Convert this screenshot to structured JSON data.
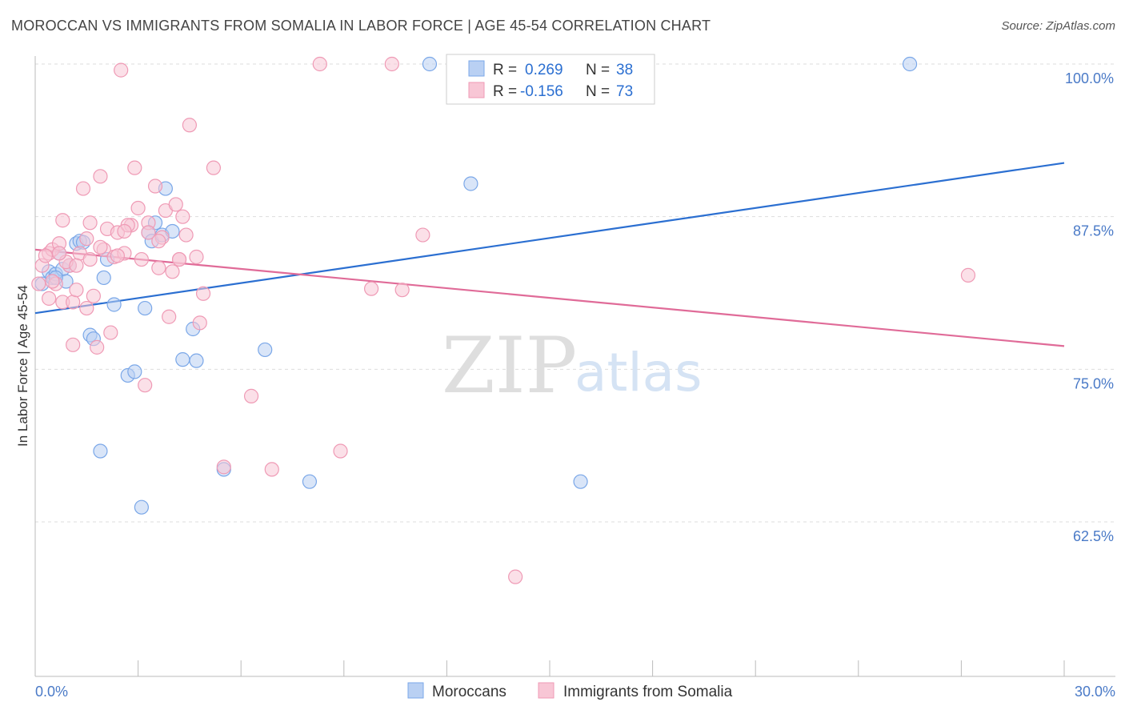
{
  "chart_data": {
    "type": "scatter",
    "title": "MOROCCAN VS IMMIGRANTS FROM SOMALIA IN LABOR FORCE | AGE 45-54 CORRELATION CHART",
    "source": "Source: ZipAtlas.com",
    "xlabel": "",
    "ylabel": "In Labor Force | Age 45-54",
    "xlim": [
      0,
      30
    ],
    "ylim": [
      51.5,
      102
    ],
    "x_tick_labels": [
      "0.0%",
      "30.0%"
    ],
    "y_ticks": [
      62.5,
      75.0,
      87.5,
      100.0
    ],
    "y_tick_labels": [
      "62.5%",
      "75.0%",
      "87.5%",
      "100.0%"
    ],
    "watermark": {
      "zip": "ZIP",
      "atlas": "atlas"
    },
    "legend": {
      "rows": [
        {
          "r_label": "R =",
          "r_value": "0.269",
          "n_label": "N =",
          "n_value": "38"
        },
        {
          "r_label": "R =",
          "r_value": "-0.156",
          "n_label": "N =",
          "n_value": "73"
        }
      ]
    },
    "series": [
      {
        "name": "Moroccans",
        "color": "#7aa7e8",
        "fill": "#b9d0f3",
        "line_color": "#2b6fd1",
        "trend": {
          "x": [
            0,
            30
          ],
          "y": [
            79.6,
            91.9
          ]
        },
        "points": [
          [
            0.2,
            82.0
          ],
          [
            0.4,
            83.0
          ],
          [
            0.5,
            82.5
          ],
          [
            0.6,
            82.8
          ],
          [
            0.7,
            84.5
          ],
          [
            0.8,
            83.2
          ],
          [
            0.9,
            82.2
          ],
          [
            1.0,
            83.5
          ],
          [
            1.2,
            85.3
          ],
          [
            1.3,
            85.5
          ],
          [
            1.6,
            77.8
          ],
          [
            1.7,
            77.5
          ],
          [
            2.0,
            82.5
          ],
          [
            2.1,
            84.0
          ],
          [
            2.3,
            80.3
          ],
          [
            2.7,
            74.5
          ],
          [
            2.9,
            74.8
          ],
          [
            3.2,
            80.0
          ],
          [
            3.3,
            86.2
          ],
          [
            3.4,
            85.5
          ],
          [
            3.5,
            87.0
          ],
          [
            3.7,
            86.0
          ],
          [
            3.8,
            89.8
          ],
          [
            4.0,
            86.3
          ],
          [
            4.3,
            75.8
          ],
          [
            4.6,
            78.3
          ],
          [
            4.7,
            75.7
          ],
          [
            5.5,
            66.8
          ],
          [
            6.7,
            76.6
          ],
          [
            8.0,
            65.8
          ],
          [
            11.5,
            100.0
          ],
          [
            12.7,
            90.2
          ],
          [
            1.9,
            68.3
          ],
          [
            3.1,
            63.7
          ],
          [
            15.9,
            65.8
          ],
          [
            25.5,
            100.0
          ],
          [
            0.6,
            82.5
          ],
          [
            1.4,
            85.4
          ]
        ]
      },
      {
        "name": "Immigrants from Somalia",
        "color": "#ef9ab5",
        "fill": "#f8c6d5",
        "line_color": "#e06b98",
        "trend": {
          "x": [
            0,
            30
          ],
          "y": [
            84.8,
            76.9
          ]
        },
        "points": [
          [
            0.1,
            82.0
          ],
          [
            0.2,
            83.5
          ],
          [
            0.4,
            84.5
          ],
          [
            0.5,
            84.8
          ],
          [
            0.6,
            82.0
          ],
          [
            0.7,
            85.3
          ],
          [
            0.8,
            80.5
          ],
          [
            0.8,
            87.2
          ],
          [
            1.0,
            83.5
          ],
          [
            1.1,
            80.5
          ],
          [
            1.1,
            77.0
          ],
          [
            1.2,
            81.5
          ],
          [
            1.3,
            84.5
          ],
          [
            1.4,
            89.8
          ],
          [
            1.5,
            80.0
          ],
          [
            1.6,
            87.0
          ],
          [
            1.6,
            84.0
          ],
          [
            1.8,
            76.8
          ],
          [
            1.9,
            90.8
          ],
          [
            2.0,
            84.8
          ],
          [
            2.1,
            86.5
          ],
          [
            2.2,
            78.0
          ],
          [
            2.3,
            84.2
          ],
          [
            2.4,
            86.2
          ],
          [
            2.5,
            99.5
          ],
          [
            2.6,
            84.5
          ],
          [
            2.8,
            86.8
          ],
          [
            2.9,
            91.5
          ],
          [
            3.0,
            88.2
          ],
          [
            3.1,
            84.0
          ],
          [
            3.2,
            73.7
          ],
          [
            3.3,
            87.0
          ],
          [
            3.5,
            90.0
          ],
          [
            3.6,
            83.3
          ],
          [
            3.7,
            85.8
          ],
          [
            3.8,
            88.0
          ],
          [
            3.9,
            79.3
          ],
          [
            4.0,
            83.0
          ],
          [
            4.1,
            88.5
          ],
          [
            4.2,
            84.0
          ],
          [
            4.3,
            87.5
          ],
          [
            4.4,
            86.0
          ],
          [
            4.5,
            95.0
          ],
          [
            4.7,
            84.2
          ],
          [
            4.8,
            78.8
          ],
          [
            4.9,
            81.2
          ],
          [
            5.2,
            91.5
          ],
          [
            5.5,
            67.0
          ],
          [
            6.3,
            72.8
          ],
          [
            6.9,
            66.8
          ],
          [
            8.3,
            100.0
          ],
          [
            8.9,
            68.3
          ],
          [
            9.8,
            81.6
          ],
          [
            10.4,
            100.0
          ],
          [
            10.7,
            81.5
          ],
          [
            11.3,
            86.0
          ],
          [
            14.0,
            58.0
          ],
          [
            27.2,
            82.7
          ],
          [
            0.3,
            84.3
          ],
          [
            0.9,
            83.8
          ],
          [
            1.7,
            81.0
          ],
          [
            2.7,
            86.8
          ],
          [
            3.6,
            85.5
          ],
          [
            2.4,
            84.3
          ],
          [
            1.5,
            85.7
          ],
          [
            0.5,
            82.2
          ],
          [
            4.2,
            84.0
          ],
          [
            1.2,
            83.5
          ],
          [
            0.7,
            84.5
          ],
          [
            1.9,
            85.0
          ],
          [
            3.3,
            86.2
          ],
          [
            2.6,
            86.3
          ],
          [
            0.4,
            80.8
          ]
        ]
      }
    ]
  }
}
